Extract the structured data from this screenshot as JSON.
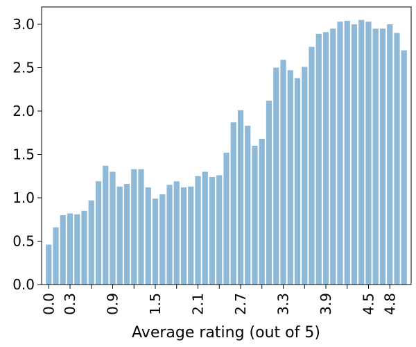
{
  "chart_data": {
    "type": "bar",
    "xlabel": "Average rating (out of 5)",
    "ylabel": "",
    "title": "",
    "ylim": [
      0,
      3.2
    ],
    "yticks": [
      0.0,
      0.5,
      1.0,
      1.5,
      2.0,
      2.5,
      3.0
    ],
    "ytick_labels": [
      "0.0",
      "0.5",
      "1.0",
      "1.5",
      "2.0",
      "2.5",
      "3.0"
    ],
    "xticks": [
      0,
      1,
      2,
      3,
      4,
      5,
      6,
      7,
      8,
      9,
      10,
      11,
      12,
      13,
      14,
      15,
      16,
      17,
      18,
      19,
      20,
      21,
      22,
      23,
      24,
      25,
      26,
      27,
      28,
      29,
      30,
      31,
      32,
      33,
      34,
      35,
      36,
      37,
      38,
      39,
      40,
      41,
      42,
      43,
      44,
      45,
      46,
      47,
      48,
      49,
      50
    ],
    "xtick_labels": [
      "0.0",
      "0.3",
      "0.9",
      "1.5",
      "2.1",
      "2.7",
      "3.3",
      "3.9",
      "4.5",
      "4.8"
    ],
    "labeled_tick_positions": [
      0,
      3,
      9,
      15,
      21,
      27,
      33,
      39,
      45,
      48
    ],
    "categories": [
      "0.0",
      "0.1",
      "0.2",
      "0.3",
      "0.4",
      "0.5",
      "0.6",
      "0.7",
      "0.8",
      "0.9",
      "1.0",
      "1.1",
      "1.2",
      "1.3",
      "1.4",
      "1.5",
      "1.6",
      "1.7",
      "1.8",
      "1.9",
      "2.0",
      "2.1",
      "2.2",
      "2.3",
      "2.4",
      "2.5",
      "2.6",
      "2.7",
      "2.8",
      "2.9",
      "3.0",
      "3.1",
      "3.2",
      "3.3",
      "3.4",
      "3.5",
      "3.6",
      "3.7",
      "3.8",
      "3.9",
      "4.0",
      "4.1",
      "4.2",
      "4.3",
      "4.4",
      "4.5",
      "4.6",
      "4.7",
      "4.8",
      "4.9",
      "5.0"
    ],
    "values": [
      0.46,
      0.66,
      0.8,
      0.82,
      0.81,
      0.85,
      0.97,
      1.19,
      1.37,
      1.3,
      1.13,
      1.16,
      1.33,
      1.33,
      1.12,
      0.99,
      1.04,
      1.15,
      1.19,
      1.12,
      1.13,
      1.25,
      1.3,
      1.24,
      1.26,
      1.52,
      1.87,
      2.01,
      1.83,
      1.6,
      1.68,
      2.12,
      2.5,
      2.59,
      2.47,
      2.38,
      2.51,
      2.74,
      2.89,
      2.91,
      2.95,
      3.03,
      3.04,
      3.0,
      3.05,
      3.03,
      2.95,
      2.95,
      3.0,
      2.9,
      2.7
    ],
    "bar_color": "#8fb9d8",
    "grid": false
  }
}
